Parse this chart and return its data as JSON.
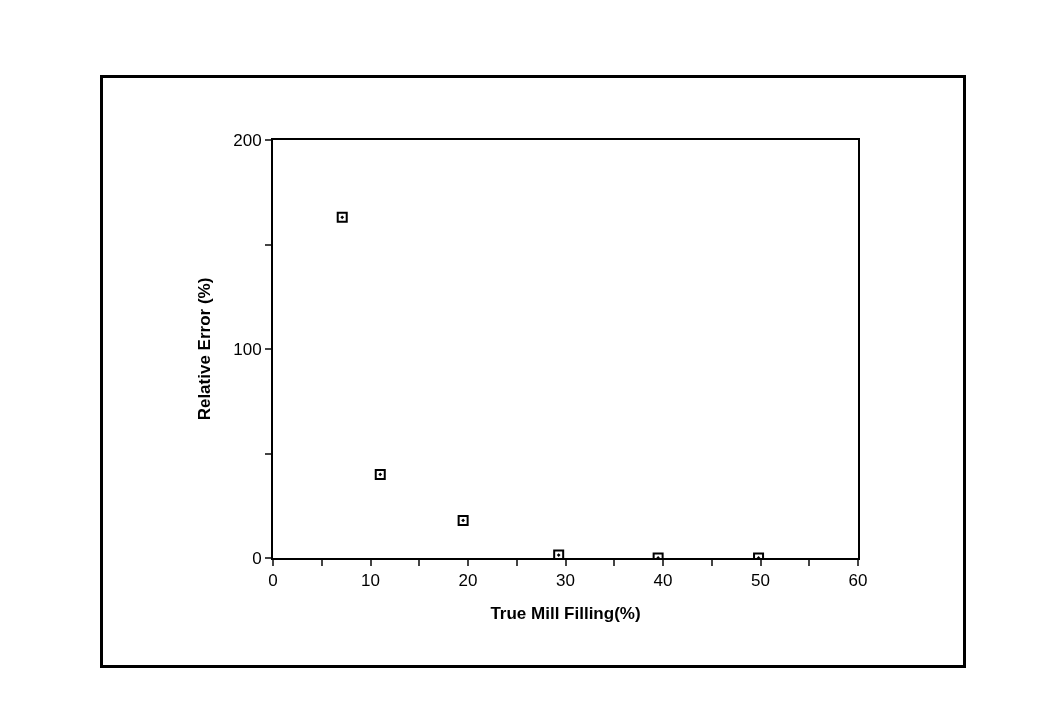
{
  "chart_data": {
    "type": "scatter",
    "xlabel": "True Mill Filling(%)",
    "ylabel": "Relative Error (%)",
    "x": [
      7.1,
      11,
      19.5,
      29.3,
      39.5,
      49.8
    ],
    "values": [
      163,
      40,
      18,
      1.4,
      0,
      0
    ],
    "color": "#000000",
    "marker": "square",
    "grid": false,
    "xlim": [
      0,
      60
    ],
    "xticks": [
      0,
      {
        "value": 5,
        "label": null
      },
      10,
      {
        "value": 15,
        "label": null
      },
      20,
      {
        "value": 25,
        "label": null
      },
      30,
      {
        "value": 35,
        "label": null
      },
      40,
      {
        "value": 45,
        "label": null
      },
      50,
      {
        "value": 55,
        "label": null
      },
      60
    ],
    "ylim": [
      0,
      200
    ],
    "yticks": [
      0,
      {
        "value": 50,
        "label": null
      },
      100,
      {
        "value": 150,
        "label": null
      },
      200
    ]
  }
}
